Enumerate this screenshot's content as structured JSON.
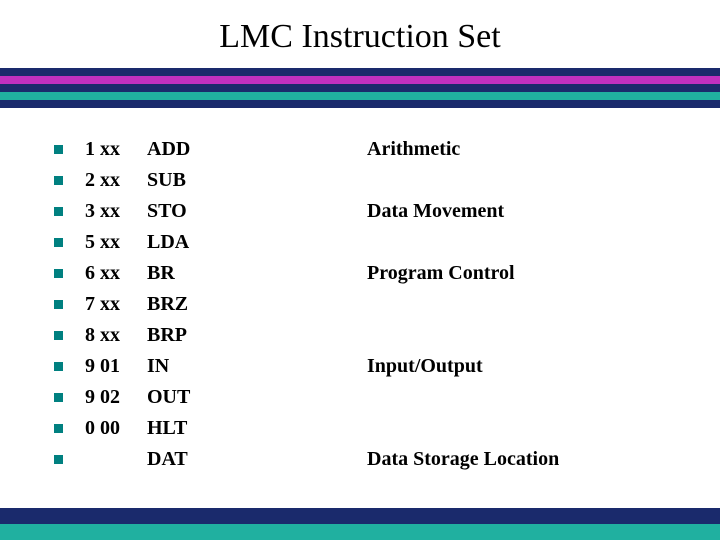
{
  "title": "LMC Instruction Set",
  "stripe_colors": [
    "#1a2a6c",
    "#c030c0",
    "#1a2a6c",
    "#20b0a0",
    "#1a2a6c"
  ],
  "stripe_height": 8,
  "footer_stripe_colors": [
    "#1a2a6c",
    "#20b0a0"
  ],
  "footer_stripe_height": 16,
  "bullet_color": "#008080",
  "text_color": "#000000",
  "background_color": "#ffffff",
  "title_fontsize": 34,
  "body_fontsize": 20,
  "rows": [
    {
      "opcode": "1 xx",
      "mnemonic": "ADD",
      "category": "Arithmetic"
    },
    {
      "opcode": "2 xx",
      "mnemonic": "SUB",
      "category": ""
    },
    {
      "opcode": "3 xx",
      "mnemonic": "STO",
      "category": "Data Movement"
    },
    {
      "opcode": "5 xx",
      "mnemonic": "LDA",
      "category": ""
    },
    {
      "opcode": "6 xx",
      "mnemonic": "BR",
      "category": "Program Control"
    },
    {
      "opcode": "7 xx",
      "mnemonic": "BRZ",
      "category": ""
    },
    {
      "opcode": "8 xx",
      "mnemonic": "BRP",
      "category": ""
    },
    {
      "opcode": "9 01",
      "mnemonic": "IN",
      "category": "Input/Output"
    },
    {
      "opcode": "9 02",
      "mnemonic": "OUT",
      "category": ""
    },
    {
      "opcode": "0 00",
      "mnemonic": "HLT",
      "category": ""
    },
    {
      "opcode": "",
      "mnemonic": "DAT",
      "category": "Data Storage Location"
    }
  ]
}
